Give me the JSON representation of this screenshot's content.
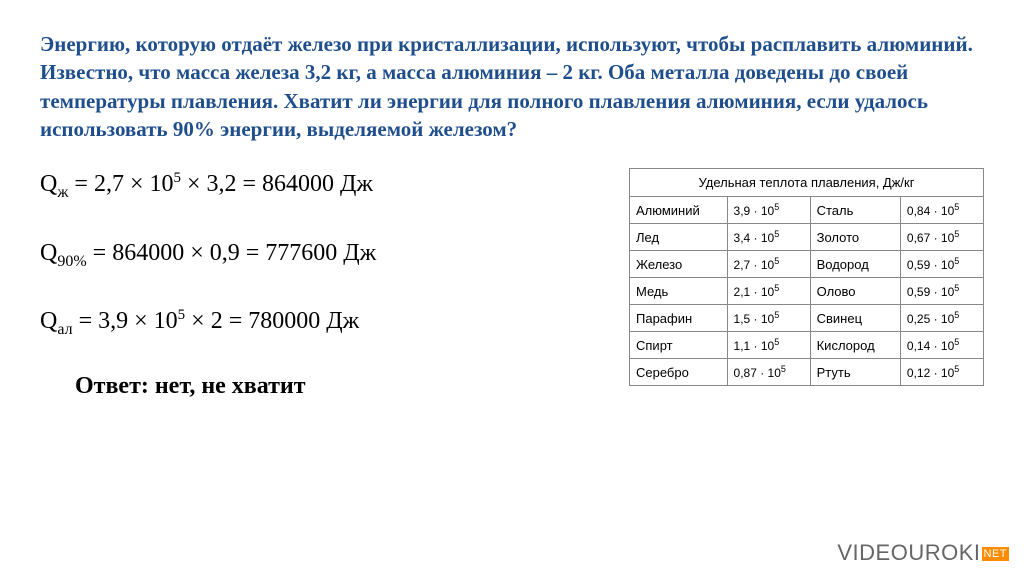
{
  "problem": "Энергию, которую отдаёт железо при кристаллизации, используют, чтобы расплавить алюминий. Известно, что масса железа 3,2 кг, а масса алюминия – 2 кг. Оба металла доведены до своей температуры плавления. Хватит ли энергии для полного плавления алюминия, если удалось использовать  90% энергии, выделяемой железом?",
  "equations": {
    "eq1_html": "Q<sub>ж</sub> = 2,7 × 10<sup>5</sup> × 3,2 = 864000 Дж",
    "eq2_html": "Q<sub>90%</sub> = 864000 × 0,9 = 777600 Дж",
    "eq3_html": "Q<sub>ал</sub> = 3,9 × 10<sup>5</sup> × 2 = 780000 Дж"
  },
  "answer": "Ответ: нет, не хватит",
  "table": {
    "header": "Удельная теплота плавления, Дж/кг",
    "rows": [
      {
        "m1": "Алюминий",
        "v1": "3,9 · 10<sup>5</sup>",
        "m2": "Сталь",
        "v2": "0,84 · 10<sup>5</sup>"
      },
      {
        "m1": "Лед",
        "v1": "3,4 · 10<sup>5</sup>",
        "m2": "Золото",
        "v2": "0,67 · 10<sup>5</sup>"
      },
      {
        "m1": "Железо",
        "v1": "2,7 · 10<sup>5</sup>",
        "m2": "Водород",
        "v2": "0,59 · 10<sup>5</sup>"
      },
      {
        "m1": "Медь",
        "v1": "2,1 · 10<sup>5</sup>",
        "m2": "Олово",
        "v2": "0,59 · 10<sup>5</sup>"
      },
      {
        "m1": "Парафин",
        "v1": "1,5 · 10<sup>5</sup>",
        "m2": "Свинец",
        "v2": "0,25 · 10<sup>5</sup>"
      },
      {
        "m1": "Спирт",
        "v1": "1,1 · 10<sup>5</sup>",
        "m2": "Кислород",
        "v2": "0,14 · 10<sup>5</sup>"
      },
      {
        "m1": "Серебро",
        "v1": "0,87 · 10<sup>5</sup>",
        "m2": "Ртуть",
        "v2": "0,12 · 10<sup>5</sup>"
      }
    ]
  },
  "watermark": {
    "brand": "VIDEOUROKI",
    "tld": "NET"
  }
}
